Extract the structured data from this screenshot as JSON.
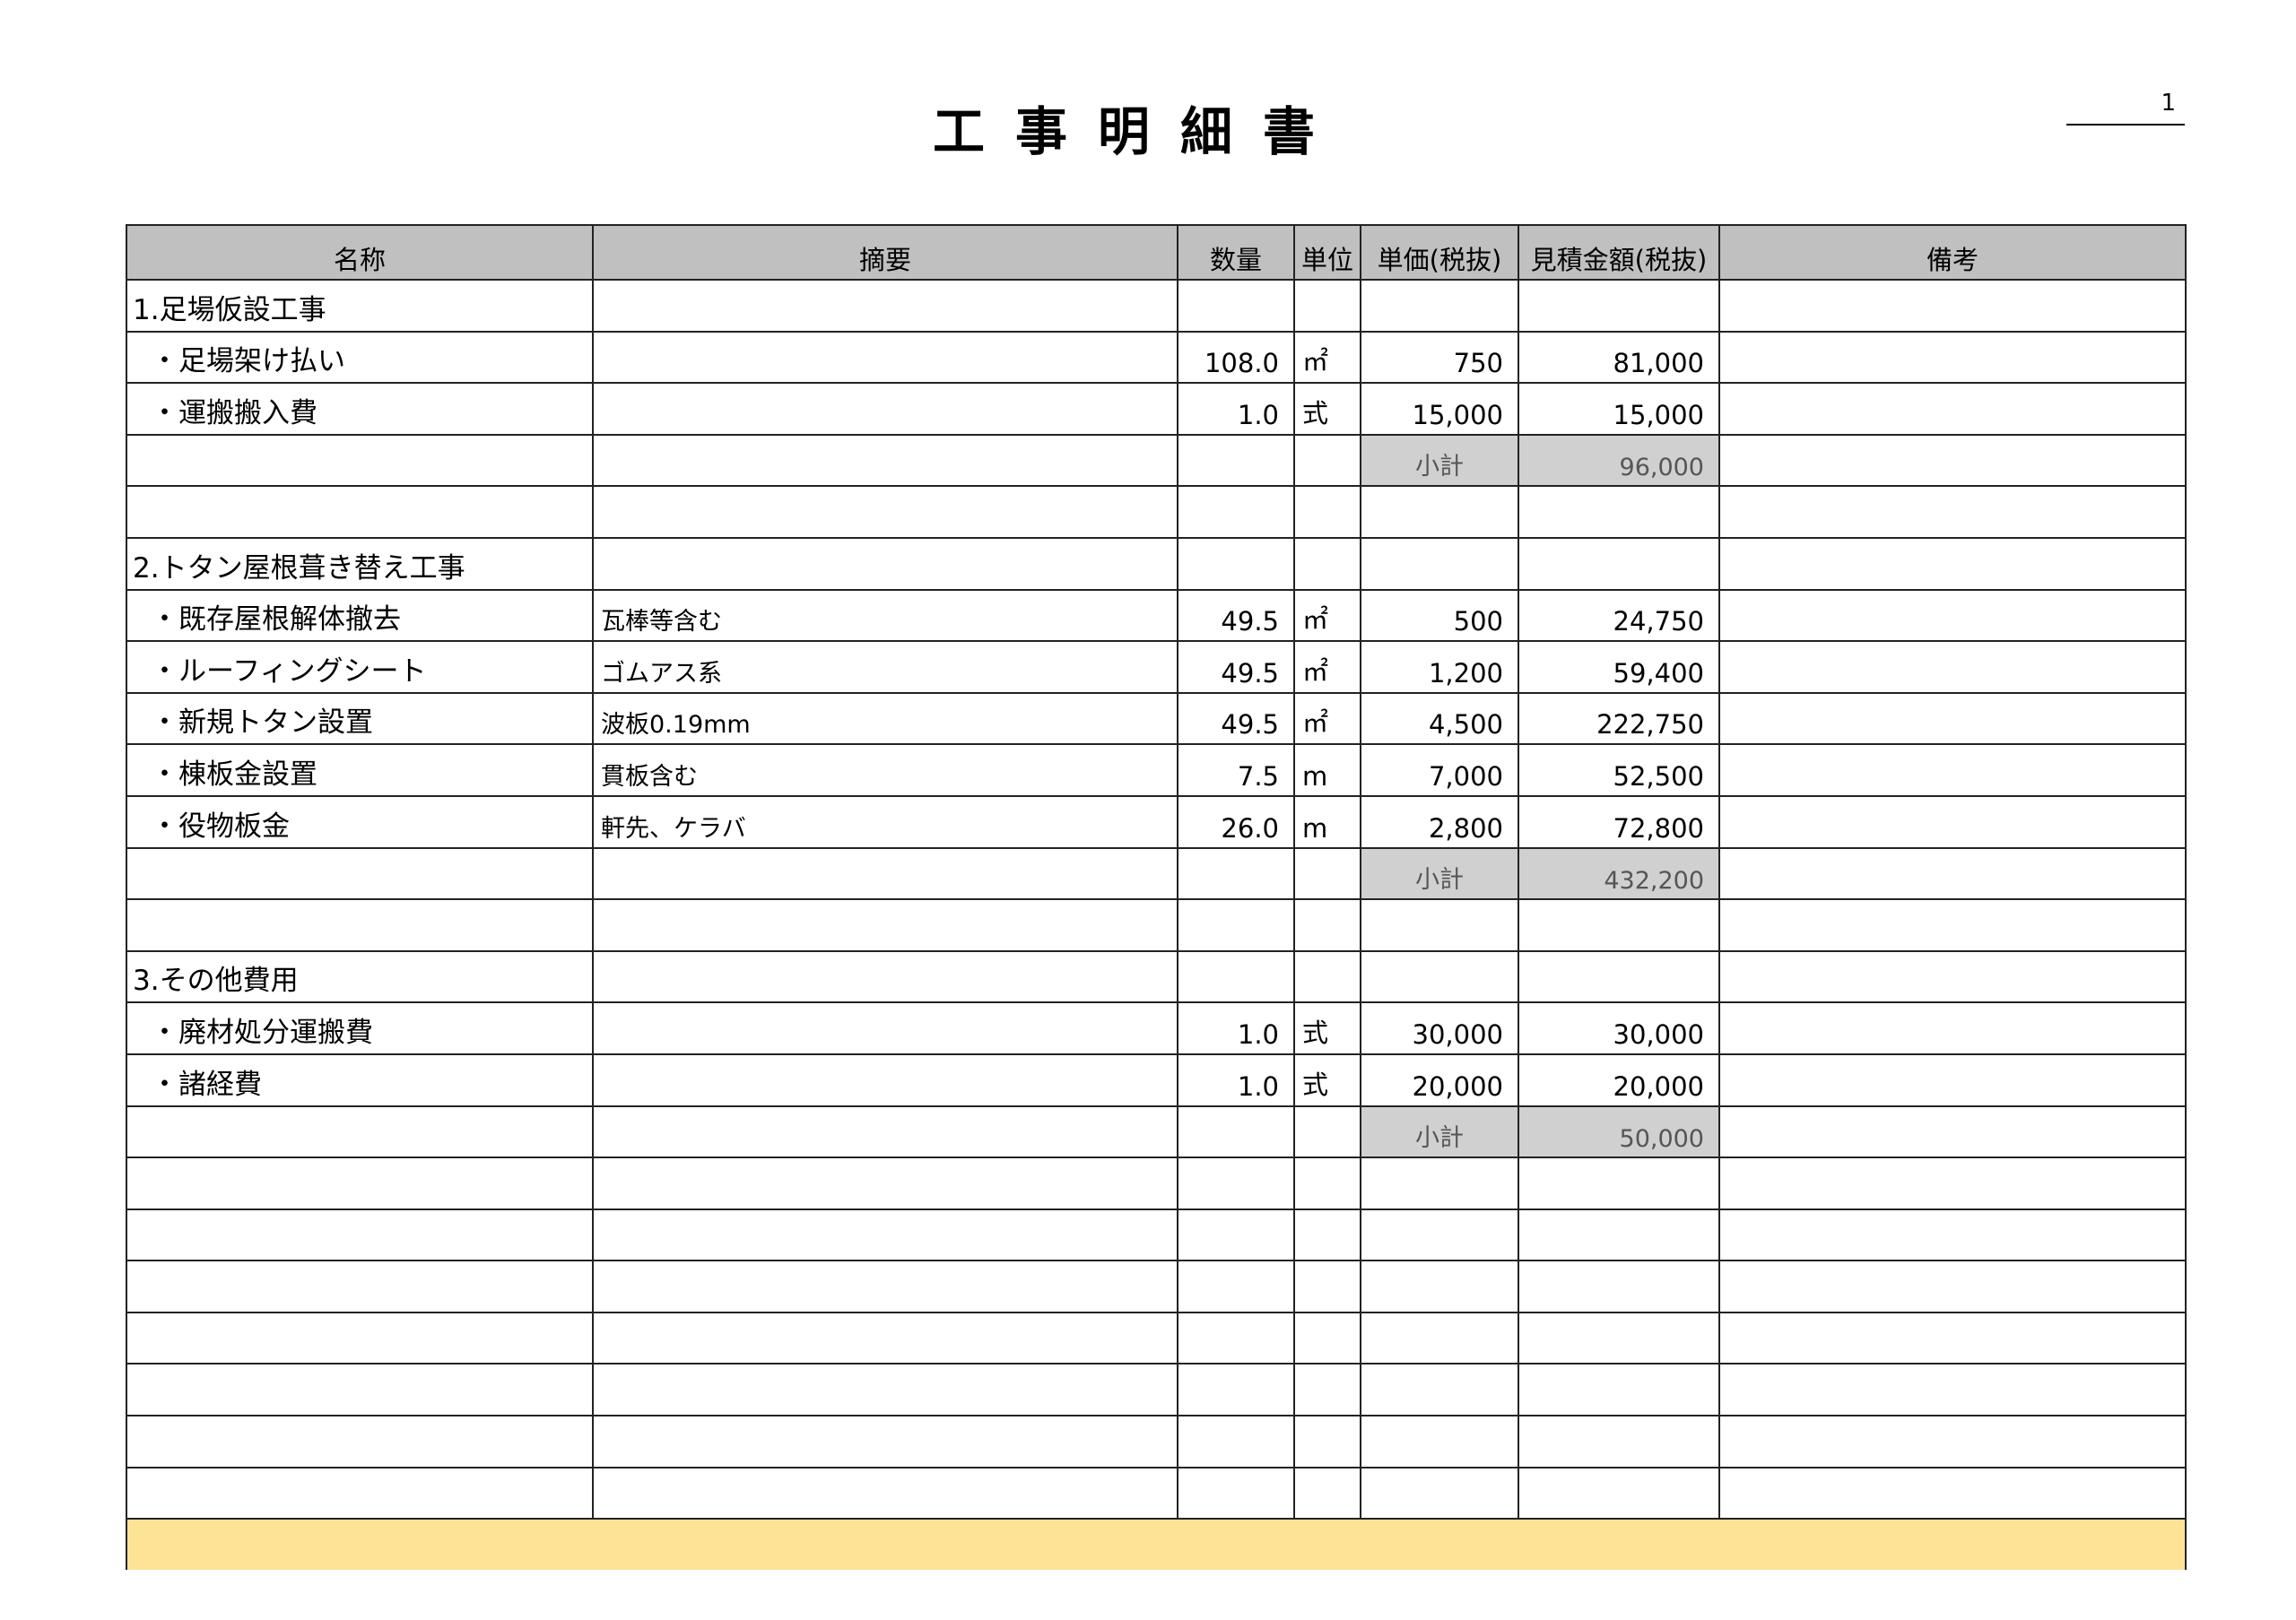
{
  "title": "工事明細書",
  "page_number": "1",
  "columns": [
    "名称",
    "摘要",
    "数量",
    "単位",
    "単価(税抜)",
    "見積金額(税抜)",
    "備考"
  ],
  "colors": {
    "header_bg": "#c0c0c0",
    "subtotal_bg": "#d0d0d0",
    "footer_bg": "#fee397"
  },
  "rows": [
    {
      "type": "section",
      "name": "1.足場仮設工事"
    },
    {
      "type": "item",
      "name": "・足場架け払い",
      "note": "",
      "qty": "108.0",
      "unit": "㎡",
      "price": "750",
      "amount": "81,000"
    },
    {
      "type": "item",
      "name": "・運搬搬入費",
      "note": "",
      "qty": "1.0",
      "unit": "式",
      "price": "15,000",
      "amount": "15,000"
    },
    {
      "type": "subtotal",
      "label": "小計",
      "amount": "96,000"
    },
    {
      "type": "blank"
    },
    {
      "type": "section",
      "name": "2.トタン屋根葺き替え工事"
    },
    {
      "type": "item",
      "name": "・既存屋根解体撤去",
      "note": "瓦棒等含む",
      "qty": "49.5",
      "unit": "㎡",
      "price": "500",
      "amount": "24,750"
    },
    {
      "type": "item",
      "name": "・ルーフィングシート",
      "note": "ゴムアス系",
      "qty": "49.5",
      "unit": "㎡",
      "price": "1,200",
      "amount": "59,400"
    },
    {
      "type": "item",
      "name": "・新規トタン設置",
      "note": "波板0.19mm",
      "qty": "49.5",
      "unit": "㎡",
      "price": "4,500",
      "amount": "222,750"
    },
    {
      "type": "item",
      "name": "・棟板金設置",
      "note": "貫板含む",
      "qty": "7.5",
      "unit": "m",
      "price": "7,000",
      "amount": "52,500"
    },
    {
      "type": "item",
      "name": "・役物板金",
      "note": "軒先、ケラバ",
      "qty": "26.0",
      "unit": "m",
      "price": "2,800",
      "amount": "72,800"
    },
    {
      "type": "subtotal",
      "label": "小計",
      "amount": "432,200"
    },
    {
      "type": "blank"
    },
    {
      "type": "section",
      "name": "3.その他費用"
    },
    {
      "type": "item",
      "name": "・廃材処分運搬費",
      "note": "",
      "qty": "1.0",
      "unit": "式",
      "price": "30,000",
      "amount": "30,000"
    },
    {
      "type": "item",
      "name": "・諸経費",
      "note": "",
      "qty": "1.0",
      "unit": "式",
      "price": "20,000",
      "amount": "20,000"
    },
    {
      "type": "subtotal",
      "label": "小計",
      "amount": "50,000"
    },
    {
      "type": "blank"
    },
    {
      "type": "blank"
    },
    {
      "type": "blank"
    },
    {
      "type": "blank"
    },
    {
      "type": "blank"
    },
    {
      "type": "blank"
    },
    {
      "type": "blank"
    }
  ]
}
